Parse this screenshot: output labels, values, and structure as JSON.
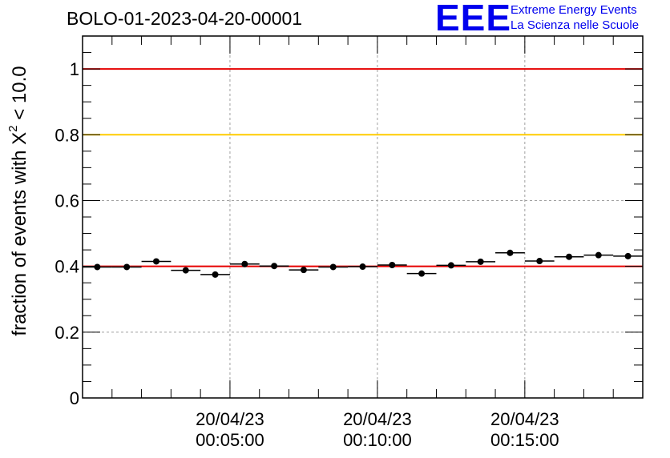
{
  "title": "BOLO-01-2023-04-20-00001",
  "logo": {
    "letters": "EEE",
    "line1": "Extreme Energy Events",
    "line2": "La Scienza nelle Scuole",
    "color": "#0000ee"
  },
  "chart_data": {
    "type": "scatter",
    "title": "BOLO-01-2023-04-20-00001",
    "ylabel_pre": "fraction of events with X",
    "ylabel_sup": "2",
    "ylabel_post": " < 10.0",
    "xlabel": "",
    "ylim": [
      0,
      1.1
    ],
    "yticks": [
      {
        "value": 0,
        "label": "0"
      },
      {
        "value": 0.2,
        "label": "0.2"
      },
      {
        "value": 0.4,
        "label": "0.4"
      },
      {
        "value": 0.6,
        "label": "0.6"
      },
      {
        "value": 0.8,
        "label": "0.8"
      },
      {
        "value": 1,
        "label": "1"
      }
    ],
    "xlim_minutes": [
      0,
      19
    ],
    "xticks": [
      {
        "minute": 5,
        "date": "20/04/23",
        "time": "00:05:00"
      },
      {
        "minute": 10,
        "date": "20/04/23",
        "time": "00:10:00"
      },
      {
        "minute": 15,
        "date": "20/04/23",
        "time": "00:15:00"
      }
    ],
    "grid": true,
    "reference_lines": [
      {
        "y": 1.0,
        "color": "#e60000"
      },
      {
        "y": 0.8,
        "color": "#ffcc00"
      },
      {
        "y": 0.4,
        "color": "#e60000"
      }
    ],
    "points_minutes": [
      0.5,
      1.5,
      2.5,
      3.5,
      4.5,
      5.5,
      6.5,
      7.5,
      8.5,
      9.5,
      10.5,
      11.5,
      12.5,
      13.5,
      14.5,
      15.5,
      16.5,
      17.5,
      18.5
    ],
    "values": [
      0.398,
      0.398,
      0.415,
      0.388,
      0.375,
      0.407,
      0.401,
      0.389,
      0.398,
      0.399,
      0.404,
      0.378,
      0.403,
      0.414,
      0.441,
      0.416,
      0.429,
      0.434,
      0.431
    ],
    "marker_color": "#000000"
  }
}
